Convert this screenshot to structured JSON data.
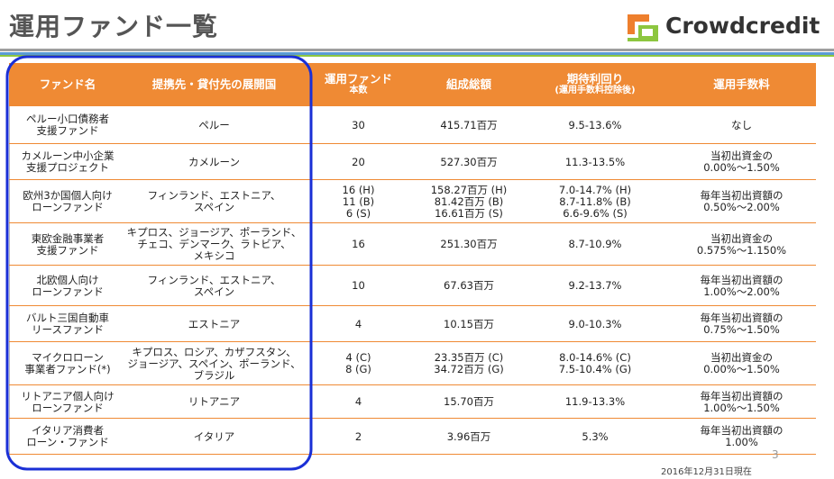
{
  "header": {
    "title": "運用ファンド一覧",
    "logo": "Crowdcredit"
  },
  "table": {
    "headers": [
      [
        "ファンド名"
      ],
      [
        "提携先・貸付先の展開国"
      ],
      [
        "運用ファンド",
        "本数"
      ],
      [
        "組成総額"
      ],
      [
        "期待利回り",
        "(運用手数料控除後)"
      ],
      [
        "運用手数料"
      ]
    ],
    "rows": [
      [
        [
          "ペルー小口債務者",
          "支援ファンド"
        ],
        [
          "ペルー"
        ],
        [
          "30"
        ],
        [
          "415.71百万"
        ],
        [
          "9.5-13.6%"
        ],
        [
          "なし"
        ]
      ],
      [
        [
          "カメルーン中小企業",
          "支援プロジェクト"
        ],
        [
          "カメルーン"
        ],
        [
          "20"
        ],
        [
          "527.30百万"
        ],
        [
          "11.3-13.5%"
        ],
        [
          "当初出資金の",
          "0.00%～1.50%"
        ]
      ],
      [
        [
          "欧州3か国個人向け",
          "ローンファンド"
        ],
        [
          "フィンランド、エストニア、",
          "スペイン"
        ],
        [
          "16 (H)",
          "11 (B)",
          "6 (S)"
        ],
        [
          "158.27百万 (H)",
          "81.42百万 (B)",
          "16.61百万 (S)"
        ],
        [
          "7.0-14.7% (H)",
          "8.7-11.8% (B)",
          "6.6-9.6% (S)"
        ],
        [
          "毎年当初出資額の",
          "0.50%～2.00%"
        ]
      ],
      [
        [
          "東欧金融事業者",
          "支援ファンド"
        ],
        [
          "キプロス、ジョージア、ポーランド、",
          "チェコ、デンマーク、ラトビア、",
          "メキシコ"
        ],
        [
          "16"
        ],
        [
          "251.30百万"
        ],
        [
          "8.7-10.9%"
        ],
        [
          "当初出資金の",
          "0.575%～1.150%"
        ]
      ],
      [
        [
          "北欧個人向け",
          "ローンファンド"
        ],
        [
          "フィンランド、エストニア、",
          "スペイン"
        ],
        [
          "10"
        ],
        [
          "67.63百万"
        ],
        [
          "9.2-13.7%"
        ],
        [
          "毎年当初出資額の",
          "1.00%～2.00%"
        ]
      ],
      [
        [
          "バルト三国自動車",
          "リースファンド"
        ],
        [
          "エストニア"
        ],
        [
          "4"
        ],
        [
          "10.15百万"
        ],
        [
          "9.0-10.3%"
        ],
        [
          "毎年当初出資額の",
          "0.75%～1.50%"
        ]
      ],
      [
        [
          "マイクロローン",
          "事業者ファンド(*)"
        ],
        [
          "キプロス、ロシア、カザフスタン、",
          "ジョージア、スペイン、ポーランド、",
          "ブラジル"
        ],
        [
          "4 (C)",
          "8 (G)"
        ],
        [
          "23.35百万 (C)",
          "34.72百万 (G)"
        ],
        [
          "8.0-14.6% (C)",
          "7.5-10.4% (G)"
        ],
        [
          "当初出資金の",
          "0.00%～1.50%"
        ]
      ],
      [
        [
          "リトアニア個人向け",
          "ローンファンド"
        ],
        [
          "リトアニア"
        ],
        [
          "4"
        ],
        [
          "15.70百万"
        ],
        [
          "11.9-13.3%"
        ],
        [
          "毎年当初出資額の",
          "1.00%～1.50%"
        ]
      ],
      [
        [
          "イタリア消費者",
          "ローン・ファンド"
        ],
        [
          "イタリア"
        ],
        [
          "2"
        ],
        [
          "3.96百万"
        ],
        [
          "5.3%"
        ],
        [
          "毎年当初出資額の",
          "1.00%"
        ]
      ]
    ]
  },
  "page_number": "3",
  "footnote": "2016年12月31日現在"
}
